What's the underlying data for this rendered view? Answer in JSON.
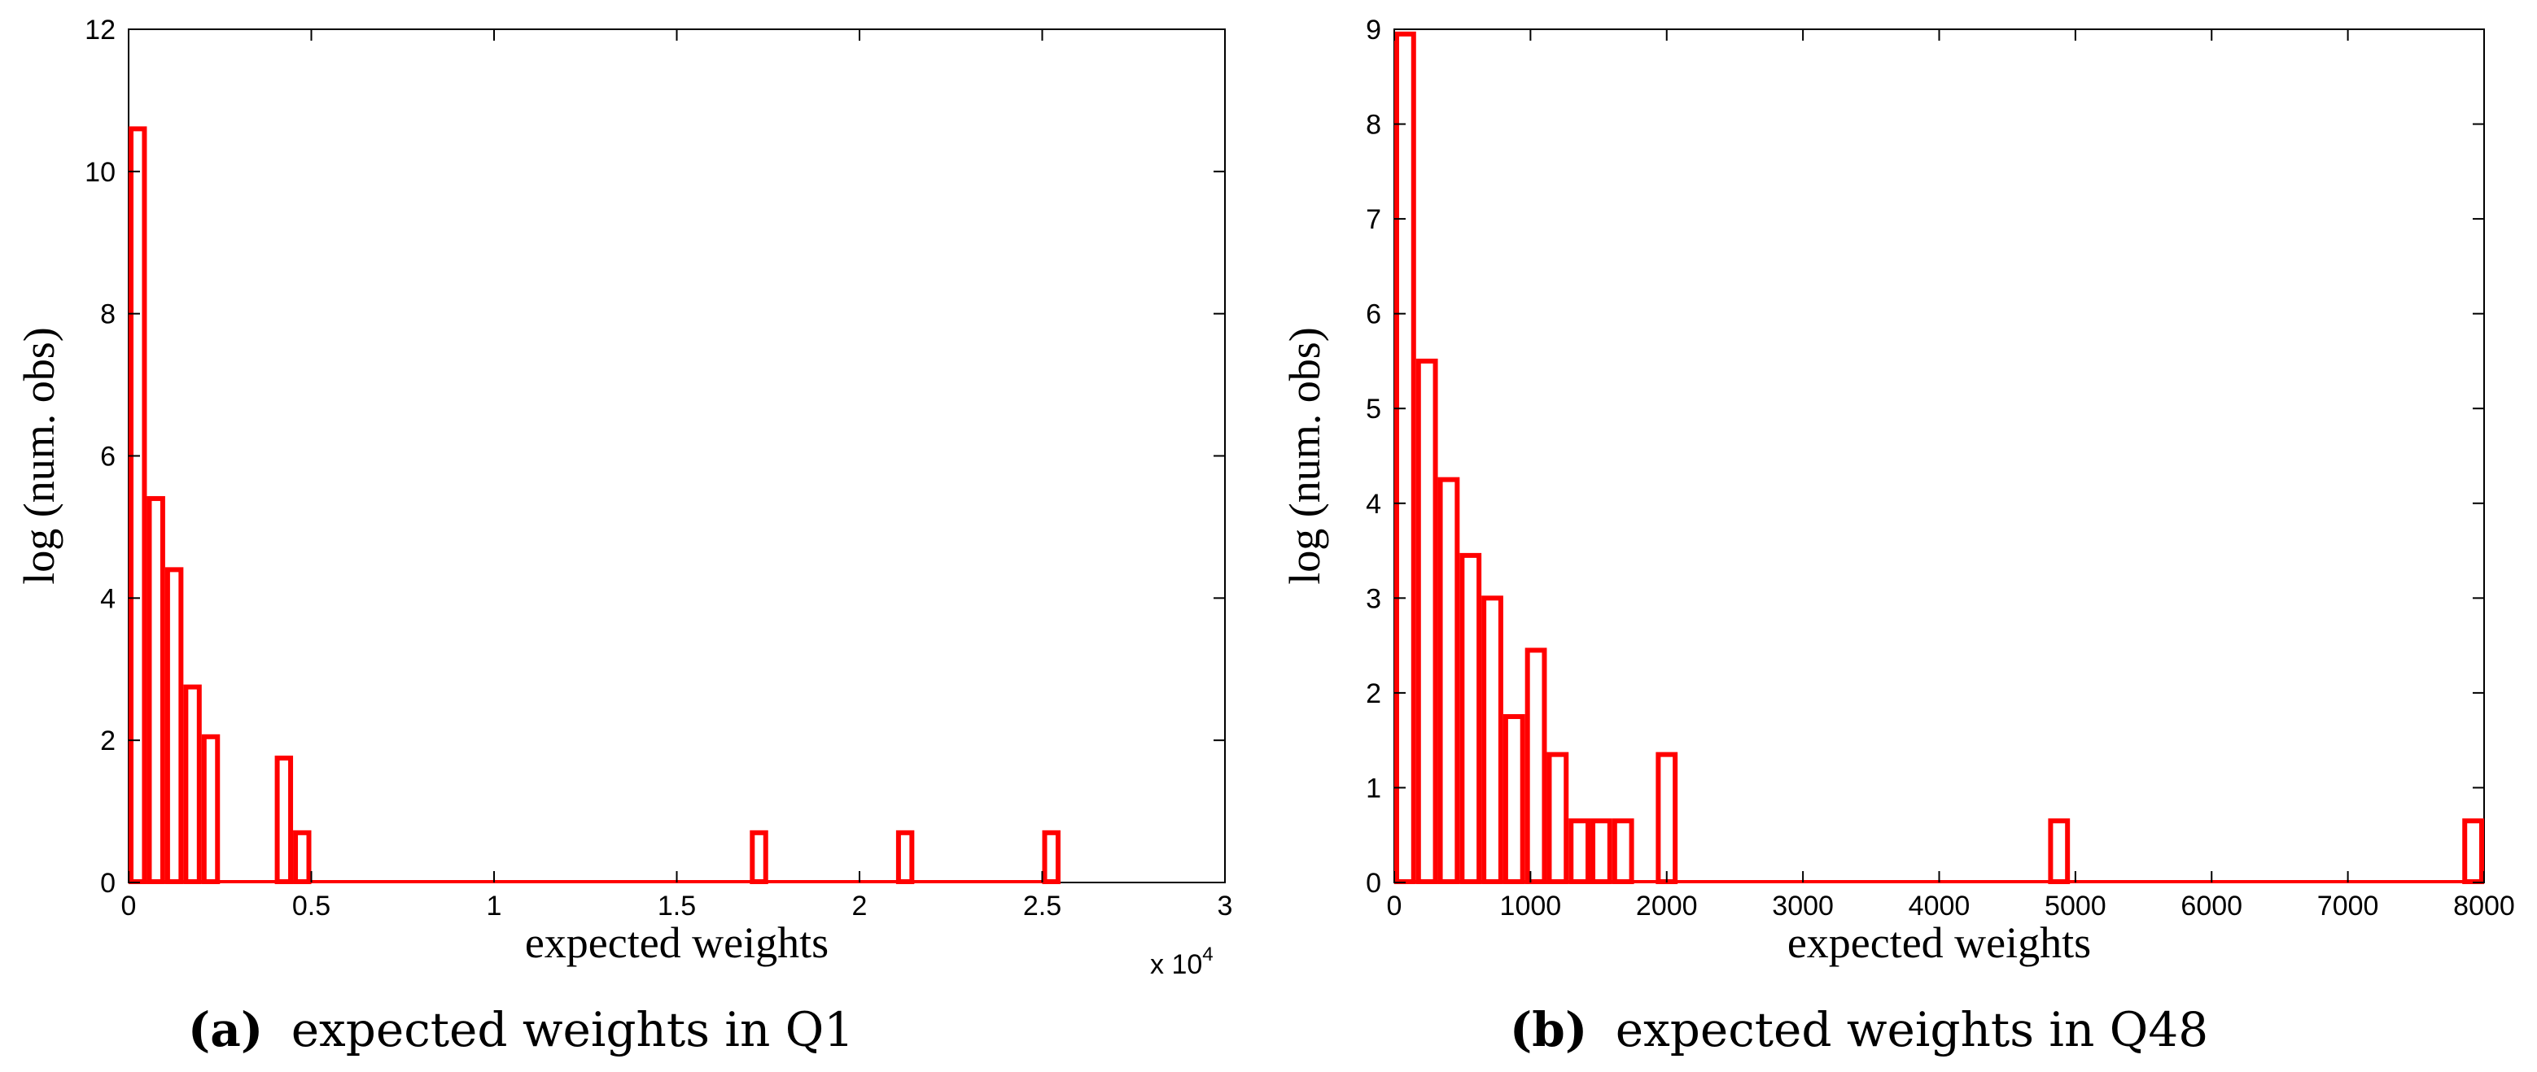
{
  "chart_data": [
    {
      "type": "bar",
      "caption_tag": "(a)",
      "caption_text": "expected weights in Q1",
      "xlabel": "expected weights",
      "ylabel": "log (num. obs)",
      "xlim": [
        0,
        30000
      ],
      "ylim": [
        0,
        12
      ],
      "x_ticks": [
        0,
        5000,
        10000,
        15000,
        20000,
        25000,
        30000
      ],
      "x_tick_labels": [
        "0",
        "0.5",
        "1",
        "1.5",
        "2",
        "2.5",
        "3"
      ],
      "y_ticks": [
        0,
        2,
        4,
        6,
        8,
        10,
        12
      ],
      "y_tick_labels": [
        "0",
        "2",
        "4",
        "6",
        "8",
        "10",
        "12"
      ],
      "x_multiplier": "x 10",
      "x_multiplier_exp": "4",
      "bin_width": 500,
      "bin_starts": [
        0,
        500,
        1000,
        1500,
        2000,
        4000,
        4500,
        17000,
        21000,
        25000
      ],
      "values": [
        10.6,
        5.4,
        4.4,
        2.75,
        2.05,
        1.75,
        0.7,
        0.7,
        0.7,
        0.7
      ],
      "bar_color": "#ff0000"
    },
    {
      "type": "bar",
      "caption_tag": "(b)",
      "caption_text": "expected weights in Q48",
      "xlabel": "expected weights",
      "ylabel": "log (num. obs)",
      "xlim": [
        0,
        8000
      ],
      "ylim": [
        0,
        9
      ],
      "x_ticks": [
        0,
        1000,
        2000,
        3000,
        4000,
        5000,
        6000,
        7000,
        8000
      ],
      "x_tick_labels": [
        "0",
        "1000",
        "2000",
        "3000",
        "4000",
        "5000",
        "6000",
        "7000",
        "8000"
      ],
      "y_ticks": [
        0,
        1,
        2,
        3,
        4,
        5,
        6,
        7,
        8,
        9
      ],
      "y_tick_labels": [
        "0",
        "1",
        "2",
        "3",
        "4",
        "5",
        "6",
        "7",
        "8",
        "9"
      ],
      "x_multiplier": "",
      "x_multiplier_exp": "",
      "bin_width": 160,
      "bin_starts": [
        0,
        160,
        320,
        480,
        640,
        800,
        960,
        1120,
        1280,
        1440,
        1600,
        1920,
        4800,
        7840
      ],
      "values": [
        8.95,
        5.5,
        4.25,
        3.45,
        3.0,
        1.75,
        2.45,
        1.35,
        0.65,
        0.65,
        0.65,
        1.35,
        0.65,
        0.65
      ],
      "bar_color": "#ff0000"
    }
  ]
}
